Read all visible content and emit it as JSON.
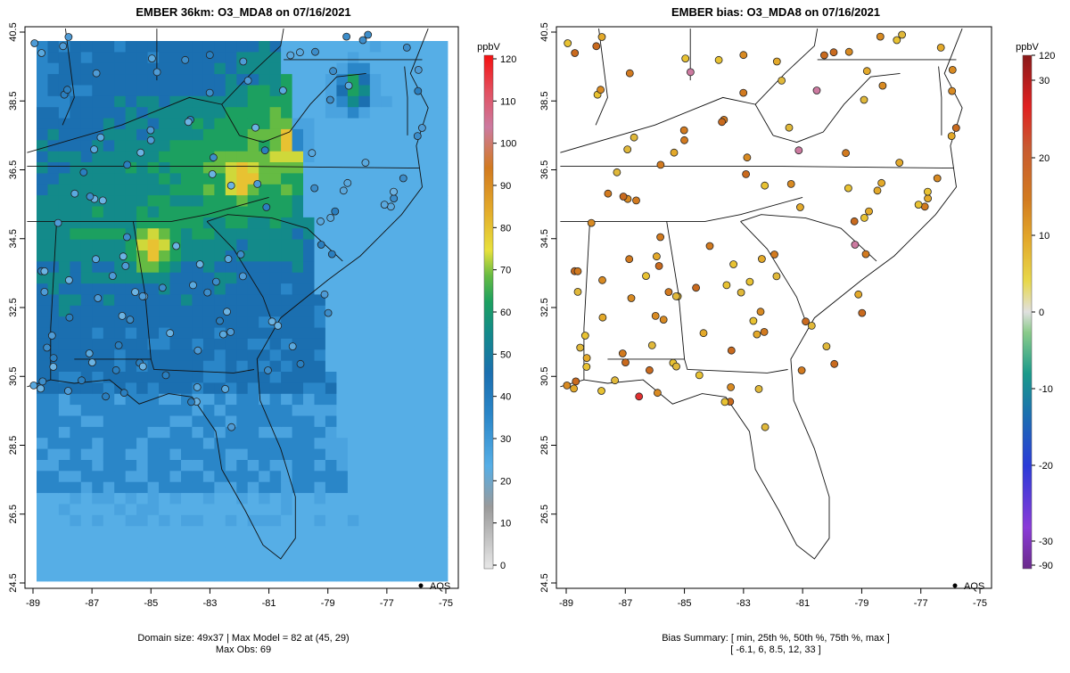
{
  "panels": [
    {
      "title": "EMBER 36km: O3_MDA8 on 07/16/2021",
      "footer_line1": "Domain size: 49x37 | Max Model = 82 at (45, 29)",
      "footer_line2": "Max Obs: 69",
      "legend_label": "AQS",
      "colorbar_unit": "ppbV",
      "colorbar_ticks": [
        "0",
        "10",
        "20",
        "30",
        "40",
        "50",
        "60",
        "70",
        "80",
        "90",
        "100",
        "110",
        "120"
      ]
    },
    {
      "title": "EMBER bias: O3_MDA8 on 07/16/2021",
      "footer_line1": "Bias Summary: [ min, 25th %, 50th %, 75th %, max ]",
      "footer_line2": "[ -6.1,   6,   8.5,   12,   33 ]",
      "legend_label": "AQS",
      "colorbar_unit": "ppbV",
      "colorbar_ticks": [
        "-90",
        "-30",
        "-20",
        "-10",
        "0",
        "10",
        "20",
        "30",
        "120"
      ]
    }
  ],
  "axes": {
    "x_ticks": [
      "-89",
      "-87",
      "-85",
      "-83",
      "-81",
      "-79",
      "-77",
      "-75"
    ],
    "y_ticks": [
      "24.5",
      "26.5",
      "28.5",
      "30.5",
      "32.5",
      "34.5",
      "36.5",
      "38.5",
      "40.5"
    ],
    "x_range": [
      -89.2,
      -74.8
    ],
    "y_range": [
      24.5,
      40.7
    ]
  },
  "bias_summary": {
    "min": -6.1,
    "p25": 6,
    "p50": 8.5,
    "p75": 12,
    "max": 33
  },
  "model_max": {
    "value": 82,
    "i": 45,
    "j": 29
  },
  "obs_max": 69
}
